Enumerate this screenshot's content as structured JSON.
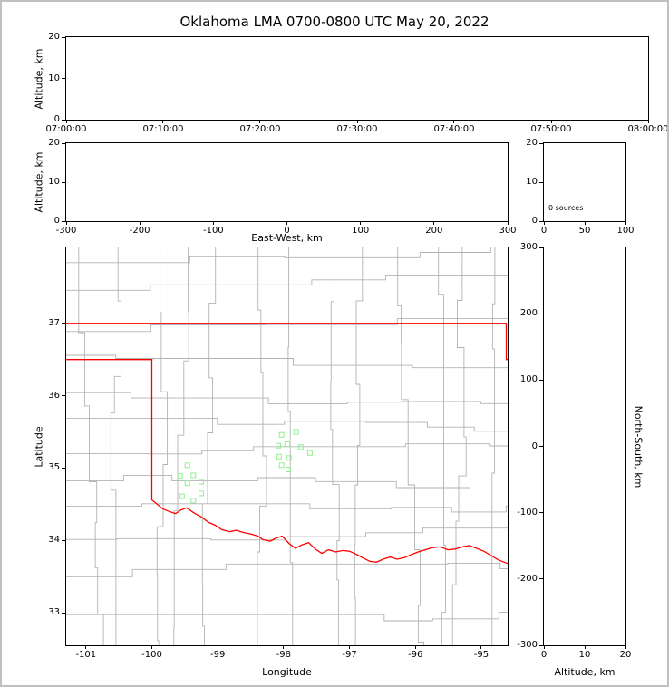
{
  "title": "Oklahoma LMA 0700-0800 UTC May 20, 2022",
  "chart_data": [
    {
      "id": "time_height",
      "type": "scatter",
      "ylabel": "Altitude, km",
      "ylim": [
        0,
        20
      ],
      "yticks": [
        0,
        10,
        20
      ],
      "xtick_labels": [
        "07:00:00",
        "07:10:00",
        "07:20:00",
        "07:30:00",
        "07:40:00",
        "07:50:00",
        "08:00:00"
      ],
      "points": []
    },
    {
      "id": "ew_height",
      "type": "scatter",
      "xlabel": "East-West, km",
      "ylabel": "Altitude, km",
      "xlim": [
        -300,
        300
      ],
      "xticks": [
        -300,
        -200,
        -100,
        0,
        100,
        200,
        300
      ],
      "ylim": [
        0,
        20
      ],
      "yticks": [
        0,
        10,
        20
      ],
      "points": []
    },
    {
      "id": "histogram",
      "type": "line",
      "xlim": [
        0,
        100
      ],
      "xticks": [
        0,
        50,
        100
      ],
      "ylim": [
        0,
        20
      ],
      "yticks": [
        0,
        10,
        20
      ],
      "annotation": "0 sources",
      "points": []
    },
    {
      "id": "plan_view",
      "type": "scatter",
      "xlabel": "Longitude",
      "ylabel": "Latitude",
      "xlim": [
        -101.3,
        -94.6
      ],
      "xticks": [
        -101,
        -100,
        -99,
        -98,
        -97,
        -96,
        -95
      ],
      "ylim": [
        32.55,
        38.05
      ],
      "yticks": [
        33,
        34,
        35,
        36,
        37
      ],
      "series": [
        {
          "name": "lma-stations",
          "marker": "open-square",
          "color": "#90ee90",
          "points": [
            [
              -99.46,
              35.04
            ],
            [
              -99.57,
              34.89
            ],
            [
              -99.37,
              34.9
            ],
            [
              -99.46,
              34.79
            ],
            [
              -99.25,
              34.81
            ],
            [
              -99.54,
              34.61
            ],
            [
              -99.37,
              34.55
            ],
            [
              -99.25,
              34.65
            ],
            [
              -98.03,
              35.46
            ],
            [
              -97.81,
              35.5
            ],
            [
              -98.08,
              35.31
            ],
            [
              -97.94,
              35.33
            ],
            [
              -97.74,
              35.29
            ],
            [
              -98.07,
              35.16
            ],
            [
              -97.92,
              35.14
            ],
            [
              -98.03,
              35.04
            ],
            [
              -97.93,
              34.98
            ],
            [
              -97.6,
              35.21
            ]
          ]
        }
      ]
    },
    {
      "id": "ns_height",
      "type": "scatter",
      "xlabel": "Altitude, km",
      "ylabel_right": "North-South, km",
      "xlim": [
        0,
        20
      ],
      "xticks": [
        0,
        10,
        20
      ],
      "ylim": [
        -300,
        300
      ],
      "yticks": [
        300,
        200,
        100,
        0,
        -100,
        -200,
        -300
      ],
      "points": []
    }
  ],
  "map": {
    "state_border_color": "#ff0000",
    "county_line_color": "#b2b2b2",
    "state_boundary_segments": [
      [
        [
          -101.3,
          37.0
        ],
        [
          -94.62,
          37.0
        ],
        [
          -94.62,
          36.5
        ],
        [
          -94.6,
          36.5
        ]
      ],
      [
        [
          -101.3,
          36.5
        ],
        [
          -100.0,
          36.5
        ],
        [
          -100.0,
          34.56
        ],
        [
          -99.93,
          34.51
        ],
        [
          -99.84,
          34.44
        ],
        [
          -99.74,
          34.4
        ],
        [
          -99.64,
          34.37
        ],
        [
          -99.56,
          34.42
        ],
        [
          -99.47,
          34.45
        ],
        [
          -99.36,
          34.38
        ],
        [
          -99.26,
          34.33
        ],
        [
          -99.14,
          34.25
        ],
        [
          -99.04,
          34.21
        ],
        [
          -98.94,
          34.15
        ],
        [
          -98.82,
          34.12
        ],
        [
          -98.72,
          34.14
        ],
        [
          -98.61,
          34.11
        ],
        [
          -98.5,
          34.09
        ],
        [
          -98.39,
          34.06
        ],
        [
          -98.31,
          34.01
        ],
        [
          -98.2,
          33.99
        ],
        [
          -98.12,
          34.03
        ],
        [
          -98.02,
          34.06
        ],
        [
          -97.92,
          33.96
        ],
        [
          -97.82,
          33.89
        ],
        [
          -97.72,
          33.94
        ],
        [
          -97.62,
          33.97
        ],
        [
          -97.52,
          33.88
        ],
        [
          -97.42,
          33.82
        ],
        [
          -97.32,
          33.87
        ],
        [
          -97.21,
          33.84
        ],
        [
          -97.1,
          33.86
        ],
        [
          -97.0,
          33.85
        ],
        [
          -96.9,
          33.81
        ],
        [
          -96.8,
          33.76
        ],
        [
          -96.69,
          33.71
        ],
        [
          -96.59,
          33.7
        ],
        [
          -96.49,
          33.74
        ],
        [
          -96.38,
          33.77
        ],
        [
          -96.28,
          33.74
        ],
        [
          -96.17,
          33.76
        ],
        [
          -96.07,
          33.8
        ],
        [
          -95.96,
          33.84
        ],
        [
          -95.85,
          33.87
        ],
        [
          -95.74,
          33.9
        ],
        [
          -95.62,
          33.91
        ],
        [
          -95.51,
          33.87
        ],
        [
          -95.4,
          33.88
        ],
        [
          -95.29,
          33.91
        ],
        [
          -95.18,
          33.93
        ],
        [
          -95.07,
          33.89
        ],
        [
          -94.96,
          33.85
        ],
        [
          -94.85,
          33.79
        ],
        [
          -94.74,
          33.73
        ],
        [
          -94.6,
          33.68
        ]
      ]
    ]
  }
}
